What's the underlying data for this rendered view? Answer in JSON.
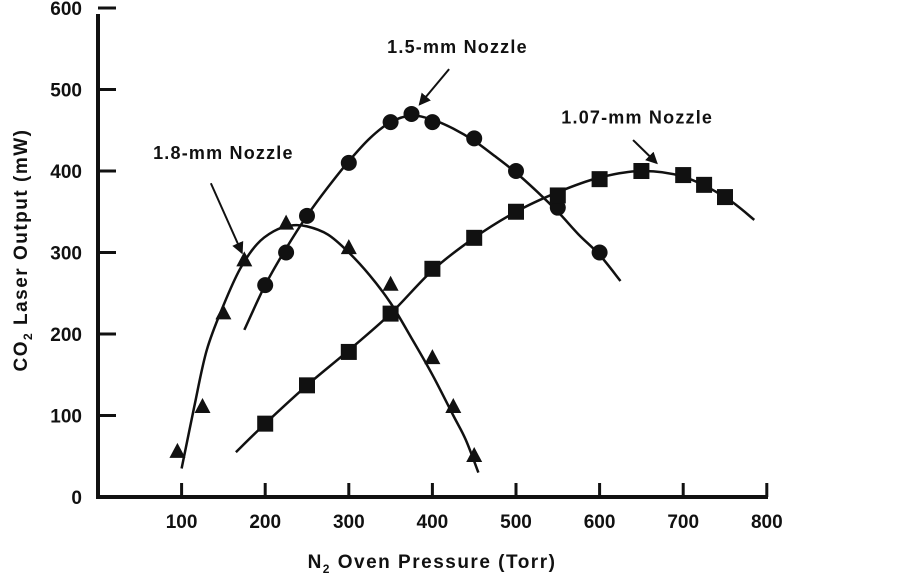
{
  "chart_data": {
    "type": "scatter",
    "title": "",
    "xlabel_prefix": "N",
    "xlabel_sub": "2",
    "xlabel_rest": " Oven Pressure (Torr)",
    "ylabel_prefix": "CO",
    "ylabel_sub": "2",
    "ylabel_rest": " Laser Output (mW)",
    "xlim": [
      0,
      800
    ],
    "ylim": [
      0,
      600
    ],
    "x_ticks": [
      100,
      200,
      300,
      400,
      500,
      600,
      700,
      800
    ],
    "y_ticks": [
      0,
      100,
      200,
      300,
      400,
      500,
      600
    ],
    "grid": false,
    "series": [
      {
        "name": "1.8-mm Nozzle",
        "marker": "triangle",
        "points": [
          [
            95,
            55
          ],
          [
            125,
            110
          ],
          [
            150,
            225
          ],
          [
            175,
            290
          ],
          [
            225,
            335
          ],
          [
            300,
            305
          ],
          [
            350,
            260
          ],
          [
            400,
            170
          ],
          [
            425,
            110
          ],
          [
            450,
            50
          ]
        ],
        "curve": [
          [
            100,
            35
          ],
          [
            115,
            110
          ],
          [
            130,
            180
          ],
          [
            150,
            235
          ],
          [
            170,
            280
          ],
          [
            190,
            310
          ],
          [
            210,
            326
          ],
          [
            230,
            333
          ],
          [
            250,
            332
          ],
          [
            275,
            322
          ],
          [
            300,
            300
          ],
          [
            325,
            272
          ],
          [
            350,
            238
          ],
          [
            375,
            195
          ],
          [
            400,
            150
          ],
          [
            425,
            100
          ],
          [
            440,
            70
          ],
          [
            455,
            30
          ]
        ]
      },
      {
        "name": "1.5-mm Nozzle",
        "marker": "circle",
        "points": [
          [
            200,
            260
          ],
          [
            225,
            300
          ],
          [
            250,
            345
          ],
          [
            300,
            410
          ],
          [
            350,
            460
          ],
          [
            375,
            470
          ],
          [
            400,
            460
          ],
          [
            450,
            440
          ],
          [
            500,
            400
          ],
          [
            550,
            355
          ],
          [
            600,
            300
          ]
        ],
        "curve": [
          [
            175,
            205
          ],
          [
            200,
            260
          ],
          [
            225,
            305
          ],
          [
            250,
            345
          ],
          [
            275,
            380
          ],
          [
            300,
            412
          ],
          [
            325,
            440
          ],
          [
            350,
            460
          ],
          [
            375,
            468
          ],
          [
            400,
            463
          ],
          [
            425,
            452
          ],
          [
            450,
            437
          ],
          [
            475,
            418
          ],
          [
            500,
            398
          ],
          [
            525,
            375
          ],
          [
            550,
            350
          ],
          [
            575,
            322
          ],
          [
            600,
            297
          ],
          [
            625,
            265
          ]
        ]
      },
      {
        "name": "1.07-mm Nozzle",
        "marker": "square",
        "points": [
          [
            200,
            90
          ],
          [
            250,
            137
          ],
          [
            300,
            178
          ],
          [
            350,
            225
          ],
          [
            400,
            280
          ],
          [
            450,
            318
          ],
          [
            500,
            350
          ],
          [
            550,
            370
          ],
          [
            600,
            390
          ],
          [
            650,
            400
          ],
          [
            700,
            395
          ],
          [
            725,
            383
          ],
          [
            750,
            368
          ]
        ],
        "curve": [
          [
            165,
            55
          ],
          [
            200,
            90
          ],
          [
            250,
            137
          ],
          [
            300,
            180
          ],
          [
            350,
            225
          ],
          [
            400,
            278
          ],
          [
            450,
            318
          ],
          [
            500,
            350
          ],
          [
            550,
            374
          ],
          [
            600,
            392
          ],
          [
            650,
            400
          ],
          [
            700,
            393
          ],
          [
            750,
            368
          ],
          [
            785,
            340
          ]
        ]
      }
    ]
  },
  "annotations": [
    {
      "series": 0,
      "text": "1.8-mm Nozzle",
      "label_at": [
        150,
        415
      ],
      "arrow_from": [
        135,
        385
      ],
      "arrow_to": [
        172,
        300
      ]
    },
    {
      "series": 1,
      "text": "1.5-mm Nozzle",
      "label_at": [
        430,
        545
      ],
      "arrow_from": [
        420,
        525
      ],
      "arrow_to": [
        385,
        482
      ]
    },
    {
      "series": 2,
      "text": "1.07-mm Nozzle",
      "label_at": [
        645,
        458
      ],
      "arrow_from": [
        640,
        438
      ],
      "arrow_to": [
        668,
        410
      ]
    }
  ]
}
